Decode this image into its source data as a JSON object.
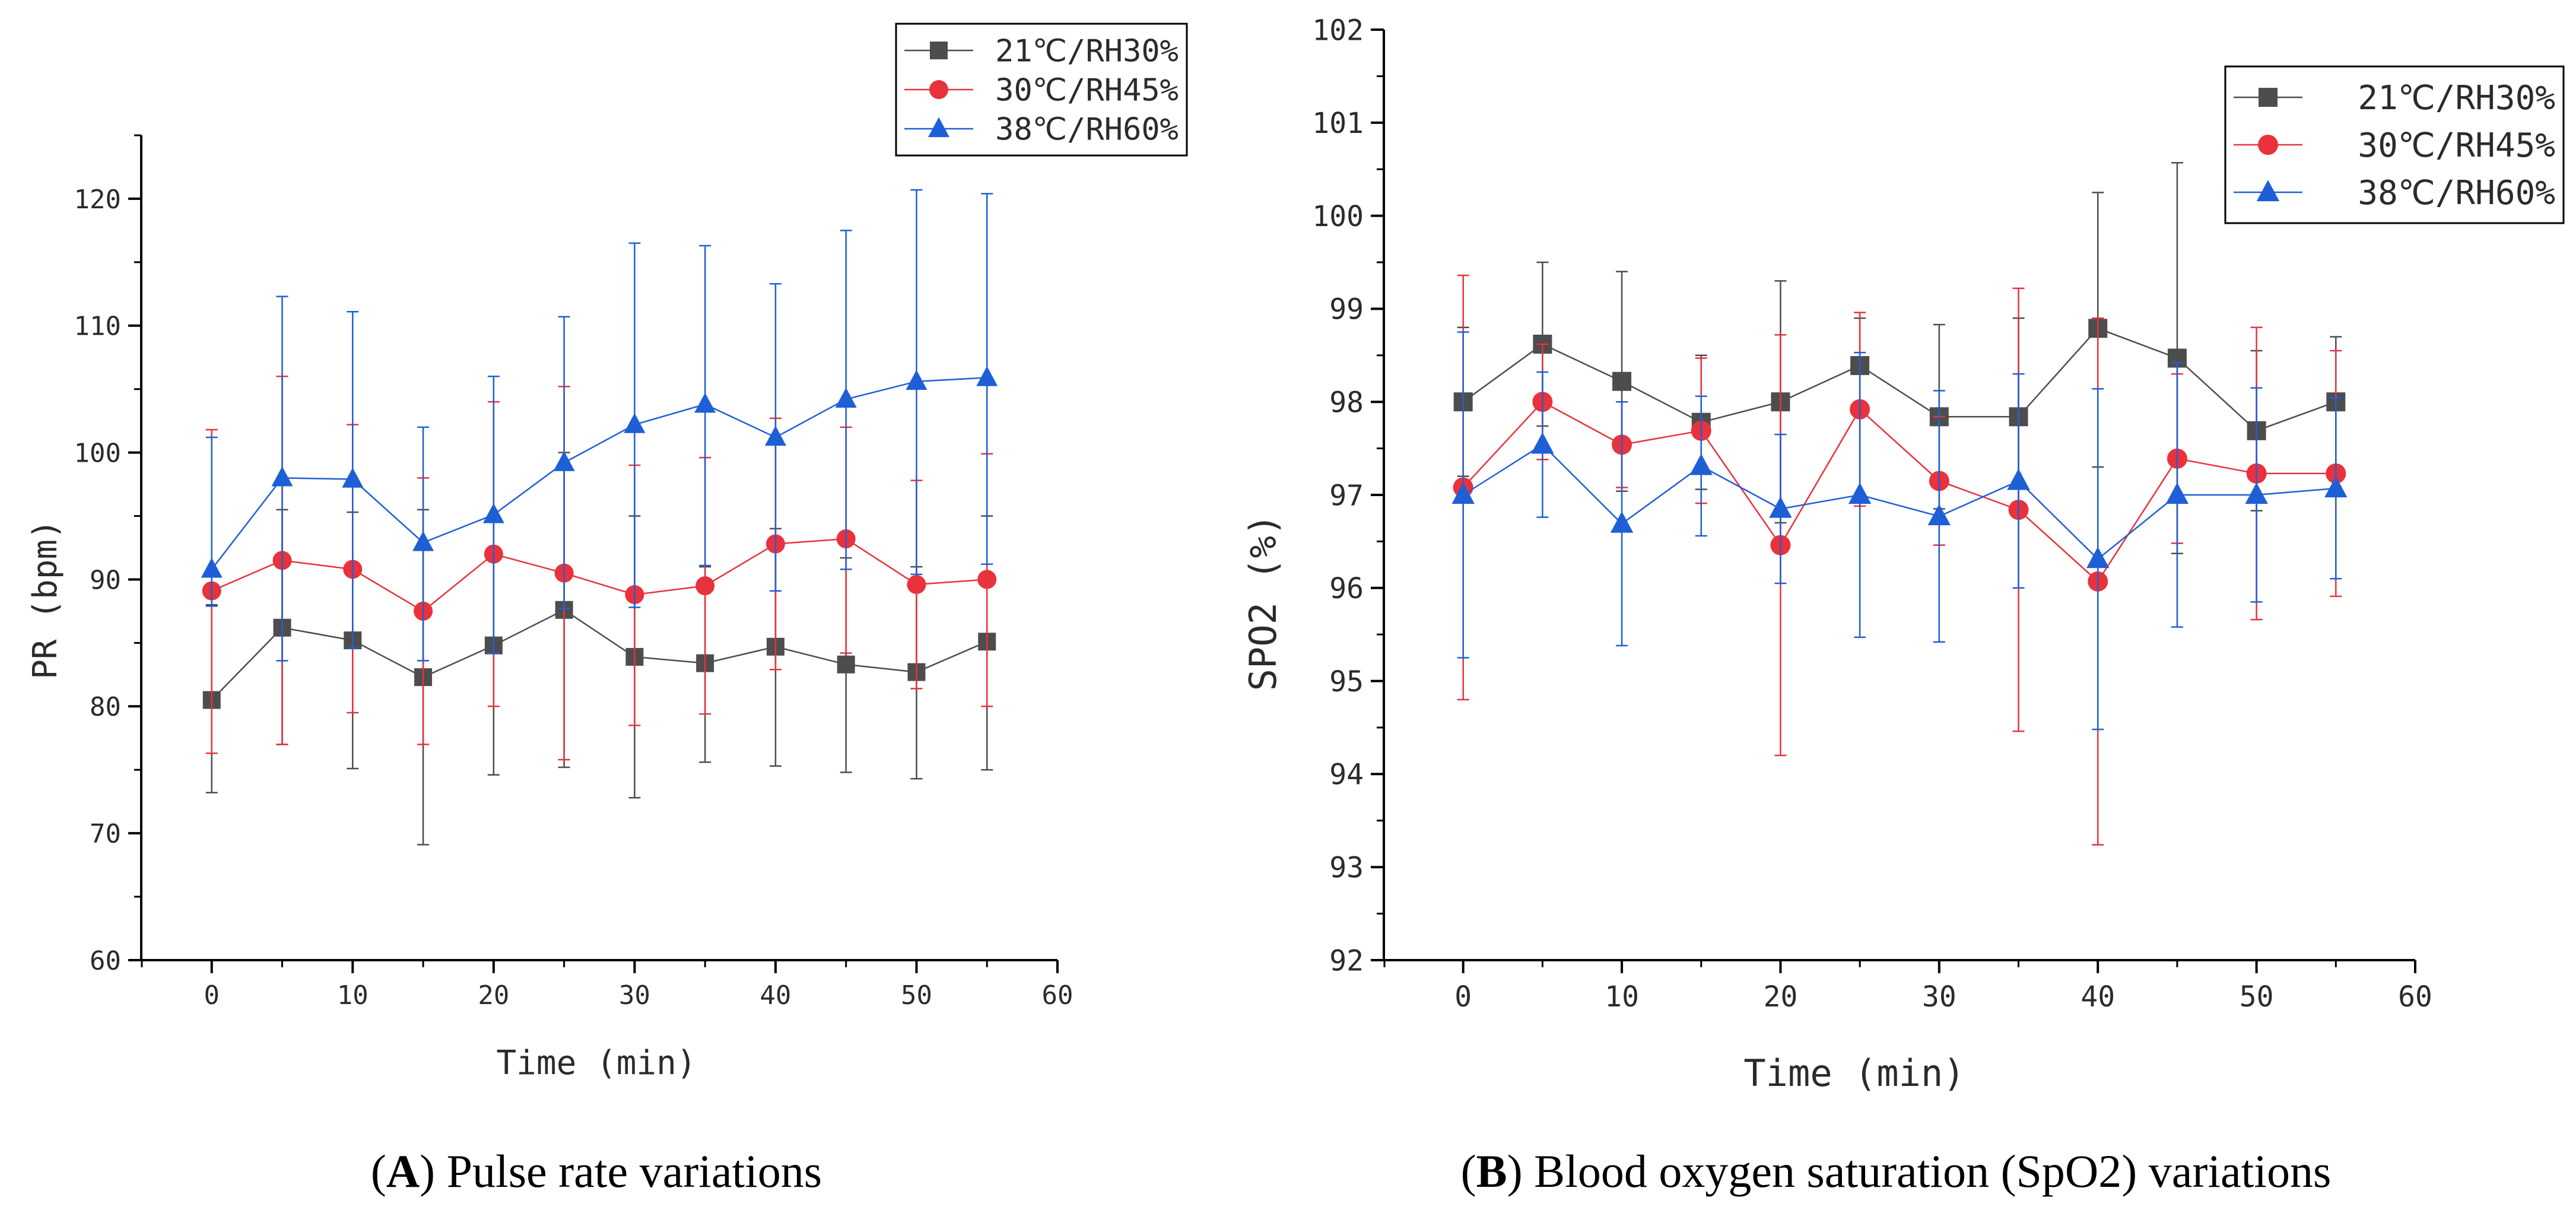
{
  "chart_data": [
    {
      "id": "A",
      "type": "line",
      "caption_letter": "A",
      "caption_text": " Pulse rate variations",
      "xlabel": "Time (min)",
      "ylabel": "PR (bpm)",
      "xlim": [
        -5,
        60
      ],
      "ylim": [
        60,
        125
      ],
      "xticks": [
        0,
        10,
        20,
        30,
        40,
        50,
        60
      ],
      "yticks": [
        60,
        70,
        80,
        90,
        100,
        110,
        120
      ],
      "legend_position": "top-right",
      "x": [
        0,
        5,
        10,
        15,
        20,
        25,
        30,
        35,
        40,
        45,
        50,
        55
      ],
      "series": [
        {
          "name": "21℃/RH30%",
          "color": "#4d4d4d",
          "marker": "square",
          "values": [
            80.5,
            86.2,
            85.2,
            82.3,
            84.8,
            87.6,
            83.9,
            83.4,
            84.7,
            83.3,
            82.7,
            85.1
          ],
          "err_upper": [
            88.0,
            95.5,
            95.3,
            95.5,
            95.0,
            100.0,
            95.0,
            91.0,
            94.0,
            91.7,
            91.0,
            95.0
          ],
          "err_lower": [
            73.2,
            77.0,
            75.1,
            69.1,
            74.6,
            75.2,
            72.8,
            75.6,
            75.3,
            74.8,
            74.3,
            75.0
          ]
        },
        {
          "name": "30℃/RH45%",
          "color": "#e8323c",
          "marker": "circle",
          "values": [
            89.1,
            91.5,
            90.8,
            87.5,
            92.0,
            90.5,
            88.8,
            89.5,
            92.8,
            93.2,
            89.6,
            90.0
          ],
          "err_upper": [
            101.8,
            106.0,
            102.2,
            98.0,
            104.0,
            105.2,
            99.0,
            99.6,
            102.7,
            102.0,
            97.8,
            99.9
          ],
          "err_lower": [
            76.3,
            77.0,
            79.5,
            77.0,
            80.0,
            75.8,
            78.5,
            79.4,
            82.9,
            84.2,
            81.4,
            80.0
          ]
        },
        {
          "name": "38℃/RH60%",
          "color": "#1f5fd6",
          "marker": "triangle",
          "values": [
            90.8,
            98.0,
            97.9,
            92.9,
            95.1,
            99.2,
            102.2,
            103.8,
            101.2,
            104.2,
            105.6,
            105.9
          ],
          "err_upper": [
            101.2,
            112.3,
            111.1,
            102.0,
            106.0,
            110.7,
            116.5,
            116.3,
            113.3,
            117.5,
            120.7,
            120.4
          ],
          "err_lower": [
            87.9,
            83.6,
            84.6,
            83.6,
            84.2,
            87.7,
            87.8,
            91.1,
            89.1,
            90.8,
            90.4,
            91.2
          ]
        }
      ]
    },
    {
      "id": "B",
      "type": "line",
      "caption_letter": "B",
      "caption_text": " Blood oxygen saturation (SpO2) variations",
      "xlabel": "Time (min)",
      "ylabel": "SPO2 (%)",
      "xlim": [
        -5,
        60
      ],
      "ylim": [
        92,
        102
      ],
      "xticks": [
        0,
        10,
        20,
        30,
        40,
        50,
        60
      ],
      "yticks": [
        92,
        93,
        94,
        95,
        96,
        97,
        98,
        99,
        100,
        101,
        102
      ],
      "legend_position": "top-right",
      "x": [
        0,
        5,
        10,
        15,
        20,
        25,
        30,
        35,
        40,
        45,
        50,
        55
      ],
      "series": [
        {
          "name": "21℃/RH30%",
          "color": "#4d4d4d",
          "marker": "square",
          "values": [
            98.0,
            98.62,
            98.22,
            97.78,
            98.0,
            98.39,
            97.84,
            97.84,
            98.79,
            98.47,
            97.69,
            98.0
          ],
          "err_upper": [
            98.8,
            99.5,
            99.4,
            98.5,
            99.3,
            98.9,
            98.83,
            98.9,
            100.25,
            100.57,
            98.55,
            98.7
          ],
          "err_lower": [
            97.2,
            97.74,
            97.04,
            97.06,
            96.7,
            97.88,
            96.85,
            96.78,
            97.3,
            96.37,
            96.83,
            97.3
          ]
        },
        {
          "name": "30℃/RH45%",
          "color": "#e8323c",
          "marker": "circle",
          "values": [
            97.08,
            98.0,
            97.54,
            97.69,
            96.46,
            97.92,
            97.15,
            96.84,
            96.07,
            97.39,
            97.23,
            97.23
          ],
          "err_upper": [
            99.36,
            98.62,
            98.0,
            98.47,
            98.72,
            98.96,
            97.84,
            99.22,
            98.9,
            98.3,
            98.8,
            98.55
          ],
          "err_lower": [
            94.8,
            97.38,
            97.08,
            96.91,
            94.2,
            96.88,
            96.46,
            94.46,
            93.24,
            96.48,
            95.66,
            95.91
          ]
        },
        {
          "name": "38℃/RH60%",
          "color": "#1f5fd6",
          "marker": "triangle",
          "values": [
            97.0,
            97.54,
            96.69,
            97.31,
            96.85,
            97.0,
            96.77,
            97.15,
            96.31,
            97.0,
            97.0,
            97.07
          ],
          "err_upper": [
            98.75,
            98.32,
            98.0,
            98.06,
            97.65,
            98.53,
            98.12,
            98.3,
            98.14,
            98.42,
            98.15,
            98.04
          ],
          "err_lower": [
            95.25,
            96.76,
            95.38,
            96.56,
            96.05,
            95.47,
            95.42,
            96.0,
            94.48,
            95.58,
            95.85,
            96.1
          ]
        }
      ]
    }
  ]
}
